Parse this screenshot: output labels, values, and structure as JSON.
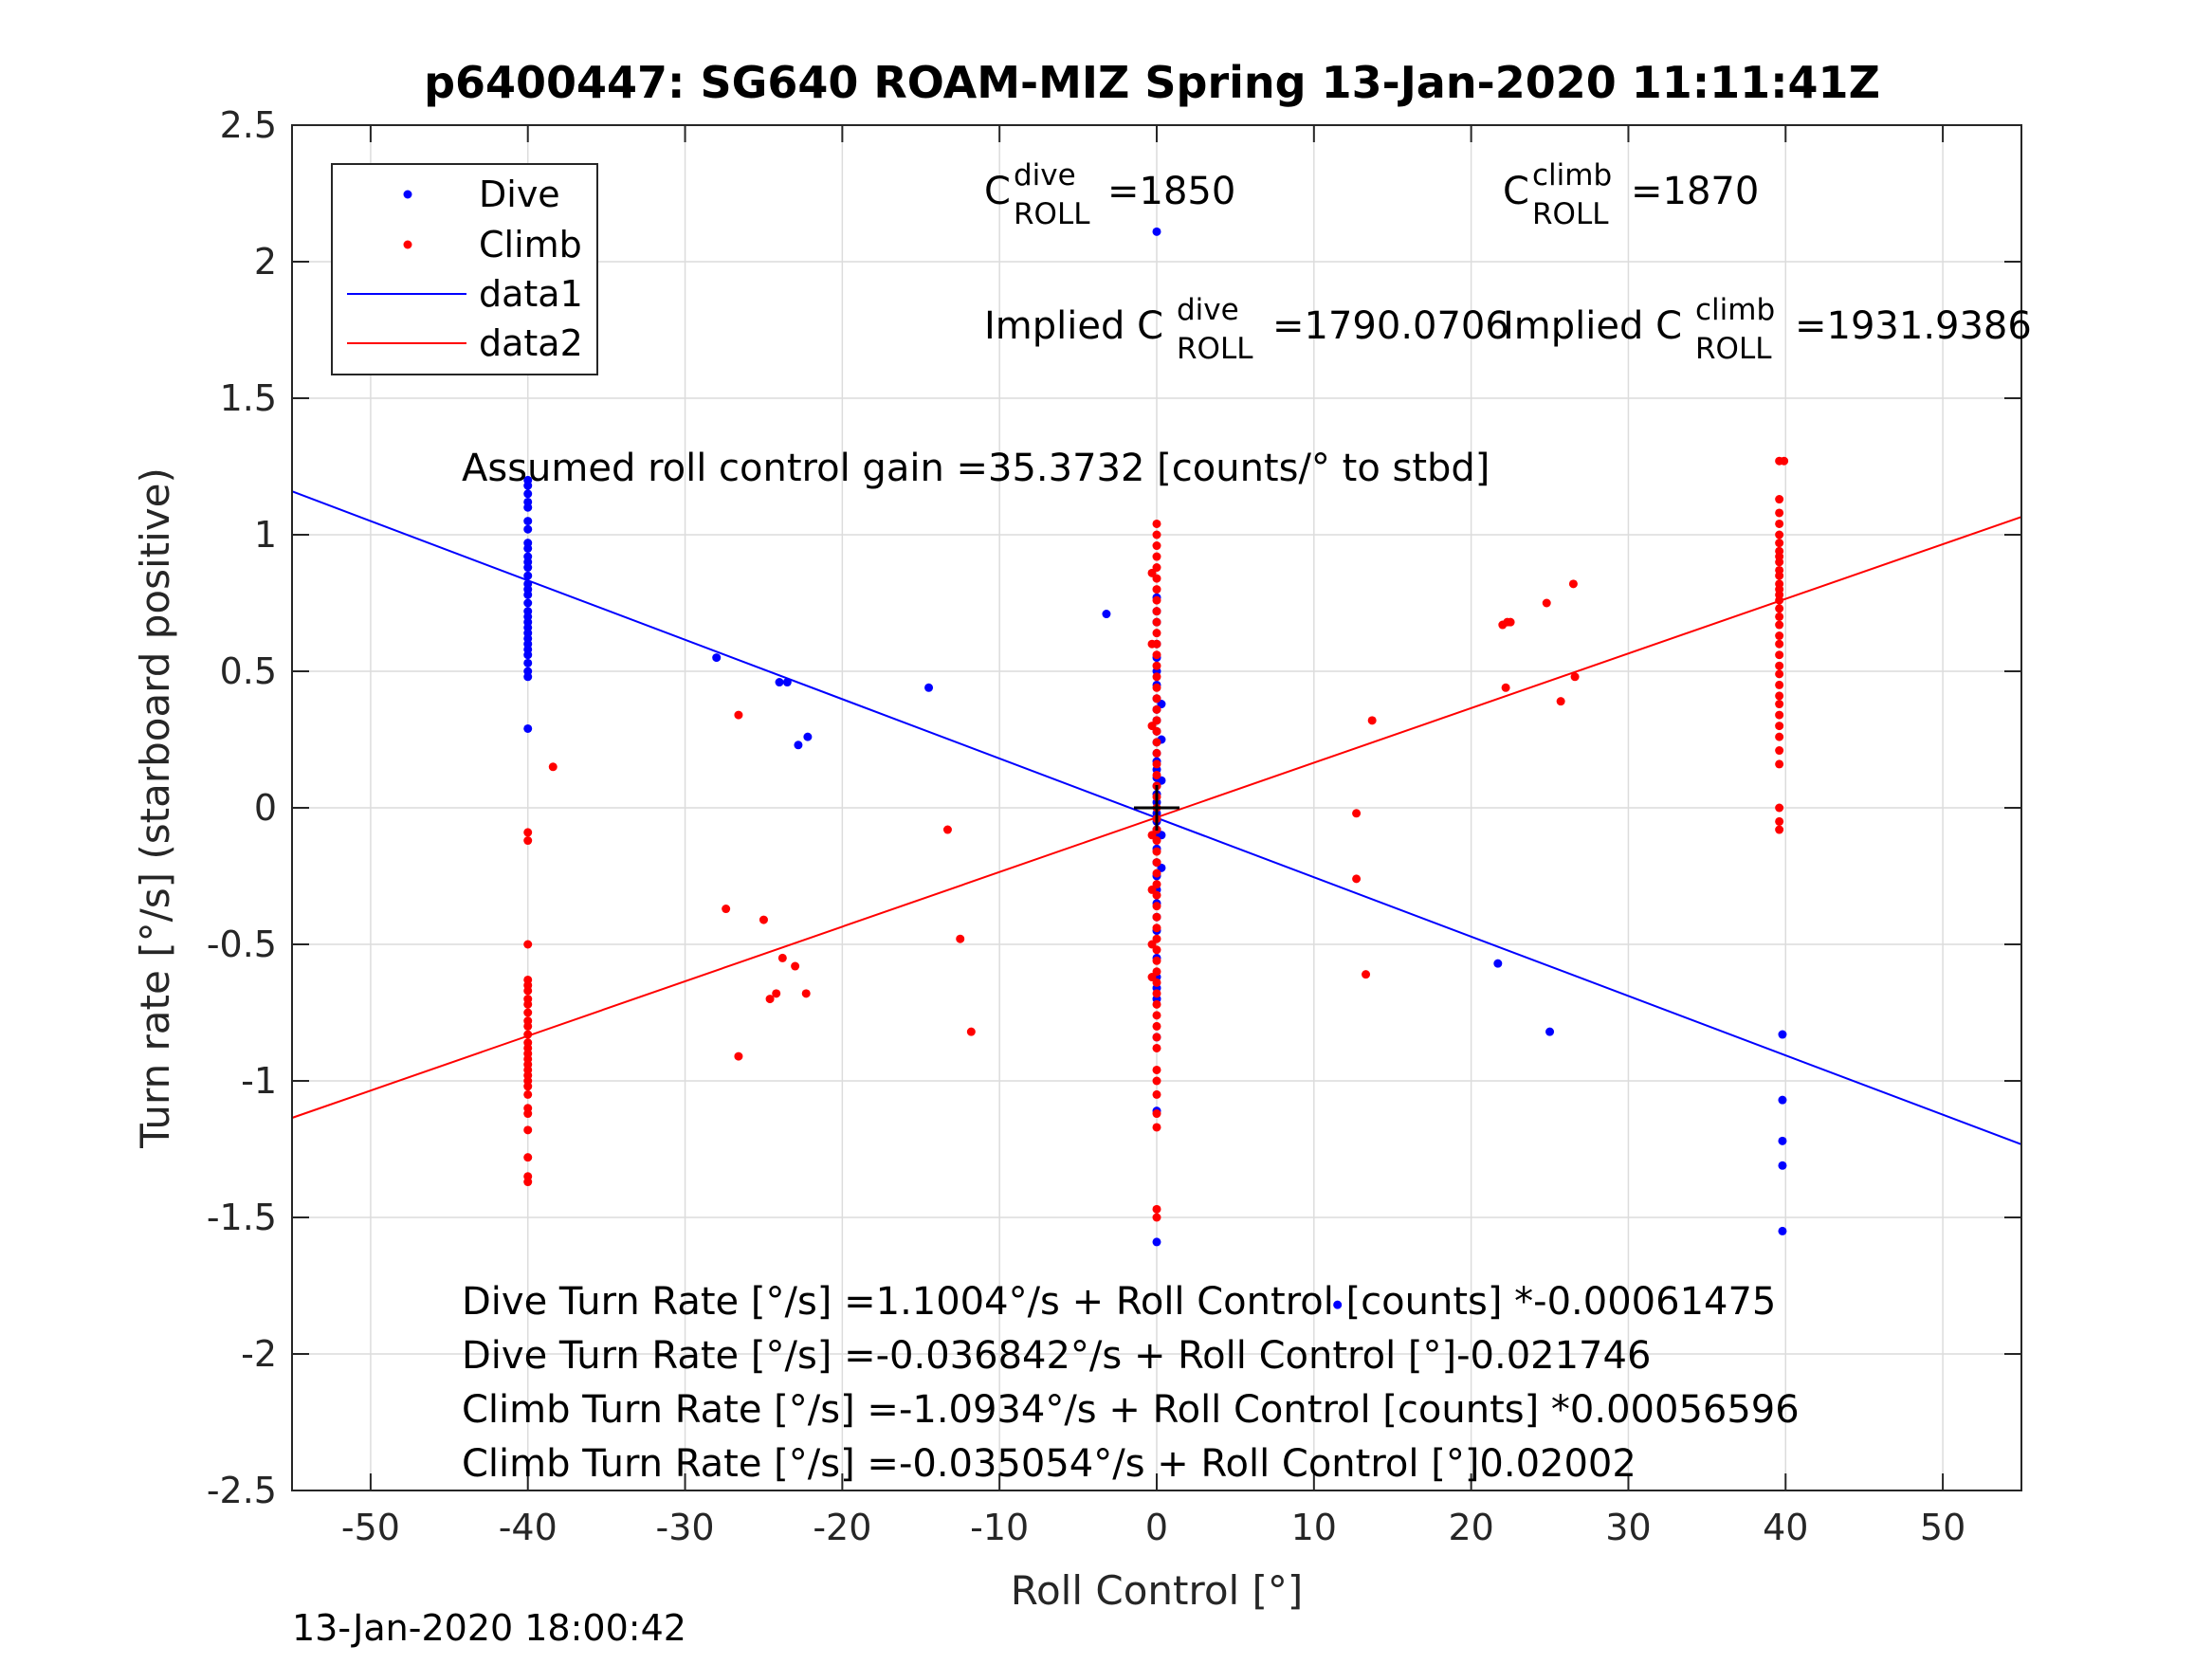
{
  "chart_data": {
    "type": "scatter",
    "title": "p6400447: SG640 ROAM-MIZ Spring 13-Jan-2020 11:11:41Z",
    "xlabel": "Roll Control [°]",
    "ylabel": "Turn rate [°/s] (starboard positive)",
    "xlim": [
      -55,
      55
    ],
    "ylim": [
      -2.5,
      2.5
    ],
    "xticks": [
      -50,
      -40,
      -30,
      -20,
      -10,
      0,
      10,
      20,
      30,
      40,
      50
    ],
    "xtick_labels": [
      "-50",
      "-40",
      "-30",
      "-20",
      "-10",
      "0",
      "10",
      "20",
      "30",
      "40",
      "50"
    ],
    "yticks": [
      -2.5,
      -2,
      -1.5,
      -1,
      -0.5,
      0,
      0.5,
      1,
      1.5,
      2,
      2.5
    ],
    "ytick_labels": [
      "-2.5",
      "-2",
      "-1.5",
      "-1",
      "-0.5",
      "0",
      "0.5",
      "1",
      "1.5",
      "2",
      "2.5"
    ],
    "grid": true,
    "legend_position": "top-left",
    "legend": [
      "Dive",
      "Climb",
      "data1",
      "data2"
    ],
    "series": [
      {
        "name": "Dive",
        "color": "#0000ff",
        "marker": "point",
        "points": [
          [
            -40,
            1.2
          ],
          [
            -40,
            1.18
          ],
          [
            -40,
            1.15
          ],
          [
            -40,
            1.12
          ],
          [
            -40,
            1.1
          ],
          [
            -40,
            1.05
          ],
          [
            -40,
            1.02
          ],
          [
            -40,
            0.97
          ],
          [
            -40,
            0.95
          ],
          [
            -40,
            0.92
          ],
          [
            -40,
            0.9
          ],
          [
            -40,
            0.88
          ],
          [
            -40,
            0.85
          ],
          [
            -40,
            0.82
          ],
          [
            -40,
            0.8
          ],
          [
            -40,
            0.78
          ],
          [
            -40,
            0.75
          ],
          [
            -40,
            0.72
          ],
          [
            -40,
            0.7
          ],
          [
            -40,
            0.68
          ],
          [
            -40,
            0.66
          ],
          [
            -40,
            0.64
          ],
          [
            -40,
            0.62
          ],
          [
            -40,
            0.6
          ],
          [
            -40,
            0.58
          ],
          [
            -40,
            0.56
          ],
          [
            -40,
            0.53
          ],
          [
            -40,
            0.5
          ],
          [
            -40,
            0.48
          ],
          [
            -40,
            0.29
          ],
          [
            -28,
            0.55
          ],
          [
            -24,
            0.46
          ],
          [
            -23.5,
            0.46
          ],
          [
            -22.8,
            0.23
          ],
          [
            -22.2,
            0.26
          ],
          [
            -14.5,
            0.44
          ],
          [
            -3.2,
            0.71
          ],
          [
            0,
            2.11
          ],
          [
            0,
            0.77
          ],
          [
            0,
            0.72
          ],
          [
            0,
            0.68
          ],
          [
            0,
            0.6
          ],
          [
            0,
            0.55
          ],
          [
            0,
            0.5
          ],
          [
            0,
            0.45
          ],
          [
            0,
            0.4
          ],
          [
            0,
            0.36
          ],
          [
            0,
            0.32
          ],
          [
            0,
            0.28
          ],
          [
            0,
            0.24
          ],
          [
            0,
            0.2
          ],
          [
            0,
            0.17
          ],
          [
            0,
            0.14
          ],
          [
            0,
            0.11
          ],
          [
            0,
            0.08
          ],
          [
            0,
            0.05
          ],
          [
            0,
            0.02
          ],
          [
            0,
            -0.02
          ],
          [
            0,
            -0.05
          ],
          [
            0,
            -0.08
          ],
          [
            0,
            -0.11
          ],
          [
            0,
            -0.15
          ],
          [
            0,
            -0.2
          ],
          [
            0,
            -0.25
          ],
          [
            0,
            -0.3
          ],
          [
            0,
            -0.35
          ],
          [
            0,
            -0.4
          ],
          [
            0,
            -0.45
          ],
          [
            0,
            -0.55
          ],
          [
            0,
            -0.62
          ],
          [
            0,
            -0.66
          ],
          [
            0,
            -0.7
          ],
          [
            0,
            -0.84
          ],
          [
            0,
            -1.11
          ],
          [
            0,
            -1.59
          ],
          [
            0.3,
            0.38
          ],
          [
            0.3,
            0.25
          ],
          [
            0.3,
            0.1
          ],
          [
            0.3,
            -0.1
          ],
          [
            0.3,
            -0.22
          ],
          [
            21.7,
            -0.57
          ],
          [
            25,
            -0.82
          ],
          [
            11.5,
            -1.82
          ],
          [
            39.8,
            -0.83
          ],
          [
            39.8,
            -1.07
          ],
          [
            39.8,
            -1.22
          ],
          [
            39.8,
            -1.31
          ],
          [
            39.8,
            -1.55
          ]
        ]
      },
      {
        "name": "Climb",
        "color": "#ff0000",
        "marker": "point",
        "points": [
          [
            -40,
            -0.5
          ],
          [
            -40,
            -0.63
          ],
          [
            -40,
            -0.65
          ],
          [
            -40,
            -0.67
          ],
          [
            -40,
            -0.7
          ],
          [
            -40,
            -0.72
          ],
          [
            -40,
            -0.75
          ],
          [
            -40,
            -0.78
          ],
          [
            -40,
            -0.8
          ],
          [
            -40,
            -0.83
          ],
          [
            -40,
            -0.86
          ],
          [
            -40,
            -0.88
          ],
          [
            -40,
            -0.9
          ],
          [
            -40,
            -0.92
          ],
          [
            -40,
            -0.94
          ],
          [
            -40,
            -0.96
          ],
          [
            -40,
            -0.98
          ],
          [
            -40,
            -1.0
          ],
          [
            -40,
            -1.02
          ],
          [
            -40,
            -1.05
          ],
          [
            -40,
            -1.1
          ],
          [
            -40,
            -1.12
          ],
          [
            -40,
            -1.18
          ],
          [
            -40,
            -1.28
          ],
          [
            -40,
            -1.35
          ],
          [
            -40,
            -1.37
          ],
          [
            -40,
            -0.09
          ],
          [
            -40,
            -0.12
          ],
          [
            -38.4,
            0.15
          ],
          [
            -27.4,
            -0.37
          ],
          [
            -26.6,
            -0.91
          ],
          [
            -26.6,
            0.34
          ],
          [
            -25,
            -0.41
          ],
          [
            -24.6,
            -0.7
          ],
          [
            -24.2,
            -0.68
          ],
          [
            -23.8,
            -0.55
          ],
          [
            -23,
            -0.58
          ],
          [
            -22.3,
            -0.68
          ],
          [
            -13.3,
            -0.08
          ],
          [
            -12.5,
            -0.48
          ],
          [
            -11.8,
            -0.82
          ],
          [
            0,
            1.04
          ],
          [
            0,
            1.0
          ],
          [
            0,
            0.96
          ],
          [
            0,
            0.92
          ],
          [
            0,
            0.88
          ],
          [
            0,
            0.84
          ],
          [
            0,
            0.8
          ],
          [
            0,
            0.76
          ],
          [
            0,
            0.72
          ],
          [
            0,
            0.68
          ],
          [
            0,
            0.64
          ],
          [
            0,
            0.6
          ],
          [
            0,
            0.56
          ],
          [
            0,
            0.52
          ],
          [
            0,
            0.48
          ],
          [
            0,
            0.44
          ],
          [
            0,
            0.4
          ],
          [
            0,
            0.36
          ],
          [
            0,
            0.32
          ],
          [
            0,
            0.28
          ],
          [
            0,
            0.24
          ],
          [
            0,
            0.2
          ],
          [
            0,
            0.16
          ],
          [
            0,
            0.12
          ],
          [
            0,
            0.08
          ],
          [
            0,
            0.04
          ],
          [
            0,
            0.0
          ],
          [
            0,
            -0.04
          ],
          [
            0,
            -0.08
          ],
          [
            0,
            -0.12
          ],
          [
            0,
            -0.16
          ],
          [
            0,
            -0.2
          ],
          [
            0,
            -0.24
          ],
          [
            0,
            -0.28
          ],
          [
            0,
            -0.32
          ],
          [
            0,
            -0.36
          ],
          [
            0,
            -0.4
          ],
          [
            0,
            -0.44
          ],
          [
            0,
            -0.48
          ],
          [
            0,
            -0.52
          ],
          [
            0,
            -0.56
          ],
          [
            0,
            -0.6
          ],
          [
            0,
            -0.64
          ],
          [
            0,
            -0.68
          ],
          [
            0,
            -0.72
          ],
          [
            0,
            -0.76
          ],
          [
            0,
            -0.8
          ],
          [
            0,
            -0.84
          ],
          [
            0,
            -0.88
          ],
          [
            0,
            -0.96
          ],
          [
            0,
            -1.0
          ],
          [
            0,
            -1.05
          ],
          [
            0,
            -1.12
          ],
          [
            0,
            -1.17
          ],
          [
            0,
            -1.47
          ],
          [
            0,
            -1.5
          ],
          [
            -0.3,
            0.86
          ],
          [
            -0.3,
            0.6
          ],
          [
            -0.3,
            0.3
          ],
          [
            -0.3,
            -0.1
          ],
          [
            -0.3,
            -0.3
          ],
          [
            -0.3,
            -0.5
          ],
          [
            -0.3,
            -0.62
          ],
          [
            12.7,
            -0.02
          ],
          [
            12.7,
            -0.26
          ],
          [
            13.3,
            -0.61
          ],
          [
            13.7,
            0.32
          ],
          [
            22,
            0.67
          ],
          [
            22.2,
            0.44
          ],
          [
            22.3,
            0.68
          ],
          [
            22.5,
            0.68
          ],
          [
            24.8,
            0.75
          ],
          [
            25.7,
            0.39
          ],
          [
            26.5,
            0.82
          ],
          [
            26.6,
            0.48
          ],
          [
            39.6,
            1.27
          ],
          [
            39.9,
            1.27
          ],
          [
            39.6,
            1.13
          ],
          [
            39.6,
            1.08
          ],
          [
            39.6,
            1.04
          ],
          [
            39.6,
            1.0
          ],
          [
            39.6,
            0.97
          ],
          [
            39.6,
            0.94
          ],
          [
            39.6,
            0.92
          ],
          [
            39.6,
            0.9
          ],
          [
            39.6,
            0.87
          ],
          [
            39.6,
            0.85
          ],
          [
            39.6,
            0.82
          ],
          [
            39.6,
            0.8
          ],
          [
            39.6,
            0.78
          ],
          [
            39.6,
            0.76
          ],
          [
            39.6,
            0.73
          ],
          [
            39.6,
            0.7
          ],
          [
            39.6,
            0.67
          ],
          [
            39.6,
            0.63
          ],
          [
            39.6,
            0.6
          ],
          [
            39.6,
            0.56
          ],
          [
            39.6,
            0.52
          ],
          [
            39.6,
            0.49
          ],
          [
            39.6,
            0.45
          ],
          [
            39.6,
            0.41
          ],
          [
            39.6,
            0.38
          ],
          [
            39.6,
            0.34
          ],
          [
            39.6,
            0.3
          ],
          [
            39.6,
            0.26
          ],
          [
            39.6,
            0.21
          ],
          [
            39.6,
            0.16
          ],
          [
            39.6,
            0.0
          ],
          [
            39.6,
            -0.05
          ],
          [
            39.6,
            -0.08
          ]
        ]
      },
      {
        "name": "data1",
        "color": "#0000ff",
        "marker": "line",
        "points": [
          [
            -55,
            1.1589
          ],
          [
            55,
            -1.2326
          ]
        ]
      },
      {
        "name": "data2",
        "color": "#ff0000",
        "marker": "line",
        "points": [
          [
            -55,
            -1.1354
          ],
          [
            55,
            1.0653
          ]
        ]
      }
    ],
    "crosshair": {
      "x": 0,
      "y": 0,
      "color": "#000000"
    },
    "annotations": {
      "c_dive": {
        "base": "C",
        "sup": "dive",
        "sub": "ROLL",
        "value": "=1850"
      },
      "c_climb": {
        "base": "C",
        "sup": "climb",
        "sub": "ROLL",
        "value": "=1870"
      },
      "implied_dive": {
        "base": "Implied C",
        "sup": "dive",
        "sub": "ROLL",
        "value": "=1790.0706"
      },
      "implied_climb": {
        "base": "Implied C",
        "sup": "climb",
        "sub": "ROLL",
        "value": "=1931.9386"
      },
      "gain": "Assumed roll control gain =35.3732 [counts/° to stbd]",
      "eq1": "Dive Turn Rate [°/s] =1.1004°/s + Roll Control [counts] *-0.00061475",
      "eq2": "Dive Turn Rate [°/s] =-0.036842°/s + Roll Control [°]-0.021746",
      "eq3": "Climb Turn Rate [°/s] =-1.0934°/s + Roll Control [counts] *0.00056596",
      "eq4": "Climb Turn Rate [°/s] =-0.035054°/s + Roll Control [°]0.02002"
    },
    "footer_timestamp": "13-Jan-2020 18:00:42"
  }
}
